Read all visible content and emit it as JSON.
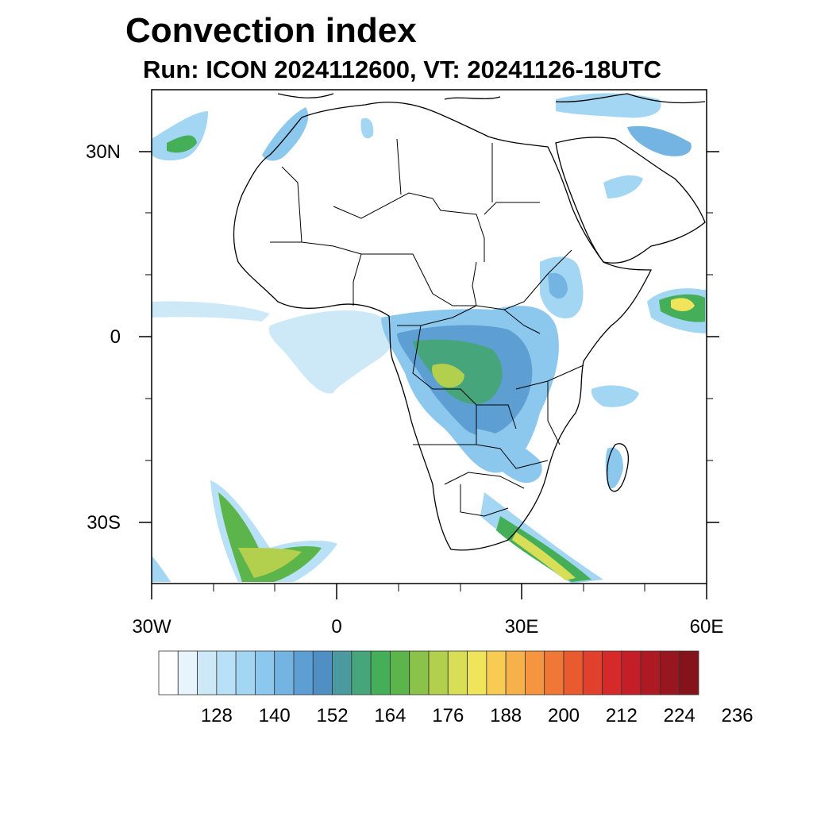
{
  "title": "Convection index",
  "subtitle": "Run: ICON 2024112600,  VT: 20241126-18UTC",
  "map": {
    "region": "Africa",
    "lon_range": [
      -30,
      60
    ],
    "lat_range": [
      -40,
      40
    ],
    "lat_labels": [
      "30N",
      "0",
      "30S"
    ],
    "lon_labels": [
      "30W",
      "0",
      "30E",
      "60E"
    ],
    "ocean_color": "#ffffff",
    "coastline_color": "#000000"
  },
  "colorbar": {
    "tick_labels": [
      "128",
      "140",
      "152",
      "164",
      "176",
      "188",
      "200",
      "212",
      "224",
      "236"
    ],
    "colors": [
      "#ffffff",
      "#e8f4fb",
      "#cde8f7",
      "#b8e0f6",
      "#a3d6f3",
      "#8cc8ee",
      "#74b4e2",
      "#5d9fd3",
      "#4f8fc4",
      "#4a9aa0",
      "#47a57c",
      "#45ae58",
      "#5bb54a",
      "#8ac24a",
      "#b2cf4e",
      "#d8de55",
      "#f0e45a",
      "#f8cc53",
      "#f7b14a",
      "#f59540",
      "#f07837",
      "#e95a2f",
      "#e0402c",
      "#d52a29",
      "#c41f28",
      "#ae1a24",
      "#981620",
      "#85131c"
    ]
  }
}
